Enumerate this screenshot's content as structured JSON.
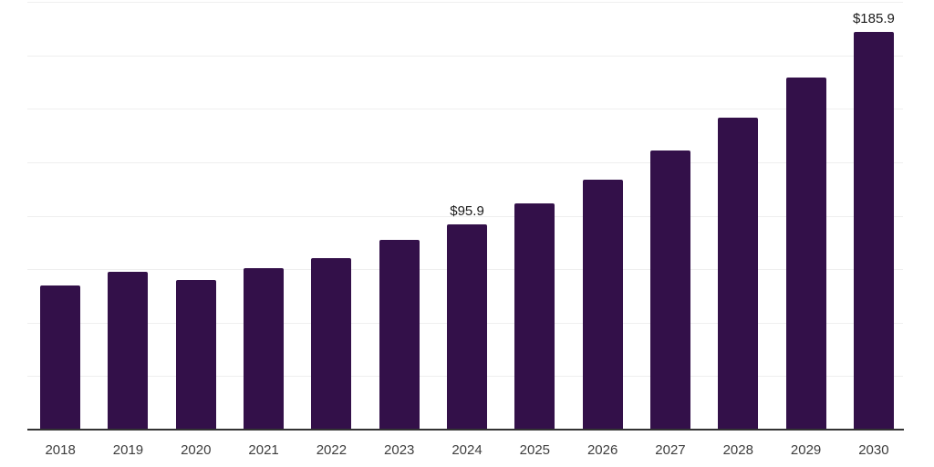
{
  "chart_data": {
    "type": "bar",
    "title": "",
    "xlabel": "",
    "ylabel": "",
    "categories": [
      "2018",
      "2019",
      "2020",
      "2021",
      "2022",
      "2023",
      "2024",
      "2025",
      "2026",
      "2027",
      "2028",
      "2029",
      "2030"
    ],
    "values": [
      67.5,
      73.6,
      70.0,
      75.4,
      80.2,
      88.5,
      95.9,
      105.7,
      116.9,
      130.3,
      146.0,
      164.5,
      185.9
    ],
    "labeled_points": [
      {
        "category": "2024",
        "label": "$95.9"
      },
      {
        "category": "2030",
        "label": "$185.9"
      }
    ],
    "ylim": [
      0,
      200
    ],
    "gridline_step": 25,
    "grid": true,
    "legend": false,
    "colors": {
      "bar": "#331049",
      "gridline": "#efefef",
      "axis": "#333333",
      "tick_label": "#3d3d3d",
      "value_label": "#1a1a1a"
    }
  }
}
